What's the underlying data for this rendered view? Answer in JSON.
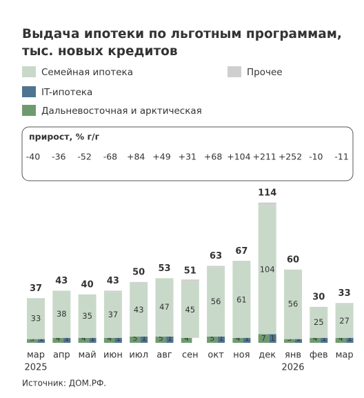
{
  "chart_data": {
    "type": "stacked-bar",
    "title": "Выдача ипотеки по льготным программам, тыс. новых кредитов",
    "categories": [
      "мар",
      "апр",
      "май",
      "июн",
      "июл",
      "авг",
      "сен",
      "окт",
      "ноя",
      "дек",
      "янв",
      "фев",
      "мар"
    ],
    "year_labels": [
      "2025",
      null,
      null,
      null,
      null,
      null,
      null,
      null,
      null,
      null,
      "2026",
      null,
      null
    ],
    "series": [
      {
        "name": "Дальневосточная и арктическая",
        "color": "#6f9a70",
        "values": [
          3,
          4,
          4,
          4,
          5,
          5,
          4,
          5,
          4,
          7,
          3,
          4,
          4
        ],
        "labeled": true
      },
      {
        "name": "IT-ипотека",
        "color": "#4f7491",
        "values": [
          1,
          1,
          1,
          1,
          1,
          1,
          null,
          1,
          1,
          1,
          1,
          1,
          1
        ],
        "labeled": true
      },
      {
        "name": "Семейная ипотека",
        "color": "#c9d9c9",
        "values": [
          33,
          38,
          35,
          37,
          43,
          47,
          45,
          56,
          61,
          104,
          56,
          25,
          27
        ],
        "labeled": true
      },
      {
        "name": "Прочее",
        "color": "#cfcfcf",
        "values": [
          0,
          0,
          0,
          1,
          1,
          0,
          2,
          1,
          1,
          2,
          0,
          0,
          1
        ],
        "labeled": false
      }
    ],
    "totals": [
      37,
      43,
      40,
      43,
      50,
      53,
      51,
      63,
      67,
      114,
      60,
      30,
      33
    ],
    "growth": {
      "title": "прирост, % г/г",
      "values": [
        -40,
        -36,
        -52,
        -68,
        84,
        49,
        31,
        68,
        104,
        211,
        252,
        -10,
        -11
      ],
      "value_labels": [
        "-40",
        "-36",
        "-52",
        "-68",
        "+84",
        "+49",
        "+31",
        "+68",
        "+104",
        "+211",
        "+252",
        "-10",
        "-11"
      ],
      "negative_color": "#a3302e",
      "positive_color": "#5c9a5c"
    },
    "source": "Источник: ДОМ.РФ."
  }
}
